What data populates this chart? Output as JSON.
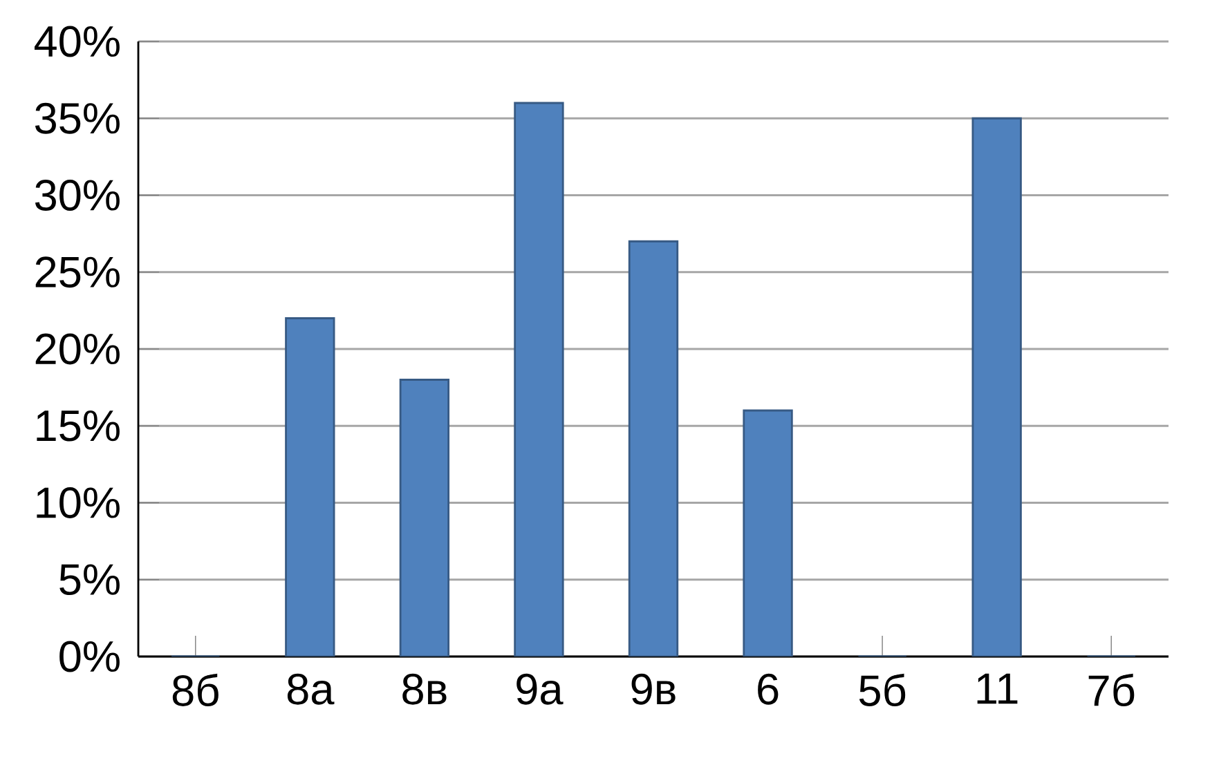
{
  "chart_data": {
    "type": "bar",
    "categories": [
      "8б",
      "8а",
      "8в",
      "9а",
      "9в",
      "6",
      "5б",
      "11",
      "7б"
    ],
    "values": [
      0,
      22,
      18,
      36,
      27,
      16,
      0,
      35,
      0
    ],
    "color": "#4f81bd",
    "ylim": [
      0,
      40
    ],
    "yticks": [
      {
        "value": 0,
        "label": "0%"
      },
      {
        "value": 5,
        "label": "5%"
      },
      {
        "value": 10,
        "label": "10%"
      },
      {
        "value": 15,
        "label": "15%"
      },
      {
        "value": 20,
        "label": "20%"
      },
      {
        "value": 25,
        "label": "25%"
      },
      {
        "value": 30,
        "label": "30%"
      },
      {
        "value": 35,
        "label": "35%"
      },
      {
        "value": 40,
        "label": "40%"
      }
    ],
    "grid": "y"
  }
}
